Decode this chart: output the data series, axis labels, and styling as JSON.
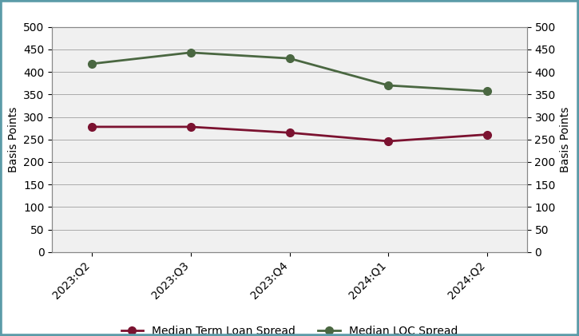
{
  "categories": [
    "2023:Q2",
    "2023:Q3",
    "2023:Q4",
    "2024:Q1",
    "2024:Q2"
  ],
  "term_loan_spread": [
    278,
    278,
    265,
    246,
    261
  ],
  "loc_spread": [
    418,
    443,
    430,
    370,
    357
  ],
  "term_loan_color": "#7B1230",
  "loc_color": "#4A6741",
  "ylim": [
    0,
    500
  ],
  "yticks": [
    0,
    50,
    100,
    150,
    200,
    250,
    300,
    350,
    400,
    450,
    500
  ],
  "ylabel_left": "Basis Points",
  "ylabel_right": "Basis Points",
  "legend_term_loan": "Median Term Loan Spread",
  "legend_loc": "Median LOC Spread",
  "marker": "o",
  "linewidth": 2,
  "markersize": 7,
  "background_color": "#FFFFFF",
  "plot_bg_color": "#F0F0F0",
  "border_color": "#5B9BA8",
  "grid_color": "#AAAAAA"
}
